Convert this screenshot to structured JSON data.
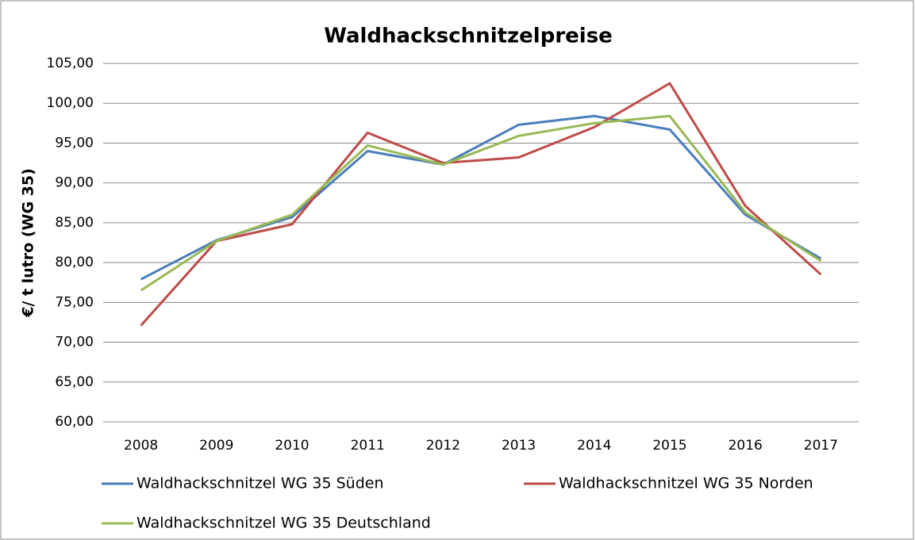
{
  "chart_data": {
    "type": "line",
    "title": "Waldhackschnitzelpreise",
    "y_label": "€/ t lutro (WG 35)",
    "categories": [
      "2008",
      "2009",
      "2010",
      "2011",
      "2012",
      "2013",
      "2014",
      "2015",
      "2016",
      "2017"
    ],
    "series": [
      {
        "name": "Waldhackschnitzel WG 35 Süden",
        "color": "#4a7ebb",
        "values": [
          77.9,
          82.8,
          85.7,
          94.0,
          92.3,
          97.3,
          98.4,
          96.7,
          86.0,
          80.5
        ]
      },
      {
        "name": "Waldhackschnitzel WG 35 Norden",
        "color": "#be4b48",
        "values": [
          72.1,
          82.7,
          84.8,
          96.3,
          92.5,
          93.2,
          97.0,
          102.5,
          87.1,
          78.5
        ]
      },
      {
        "name": "Waldhackschnitzel WG 35 Deutschland",
        "color": "#98b954",
        "values": [
          76.5,
          82.7,
          86.0,
          94.7,
          92.3,
          95.9,
          97.5,
          98.4,
          86.3,
          80.2
        ]
      }
    ],
    "ylim": [
      60,
      105
    ],
    "yticks": [
      {
        "value": 60,
        "label": "60,00"
      },
      {
        "value": 65,
        "label": "65,00"
      },
      {
        "value": 70,
        "label": "70,00"
      },
      {
        "value": 75,
        "label": "75,00"
      },
      {
        "value": 80,
        "label": "80,00"
      },
      {
        "value": 85,
        "label": "85,00"
      },
      {
        "value": 90,
        "label": "90,00"
      },
      {
        "value": 95,
        "label": "95,00"
      },
      {
        "value": 100,
        "label": "100,00"
      },
      {
        "value": 105,
        "label": "105,00"
      }
    ],
    "grid": true,
    "legend": "bottom"
  }
}
